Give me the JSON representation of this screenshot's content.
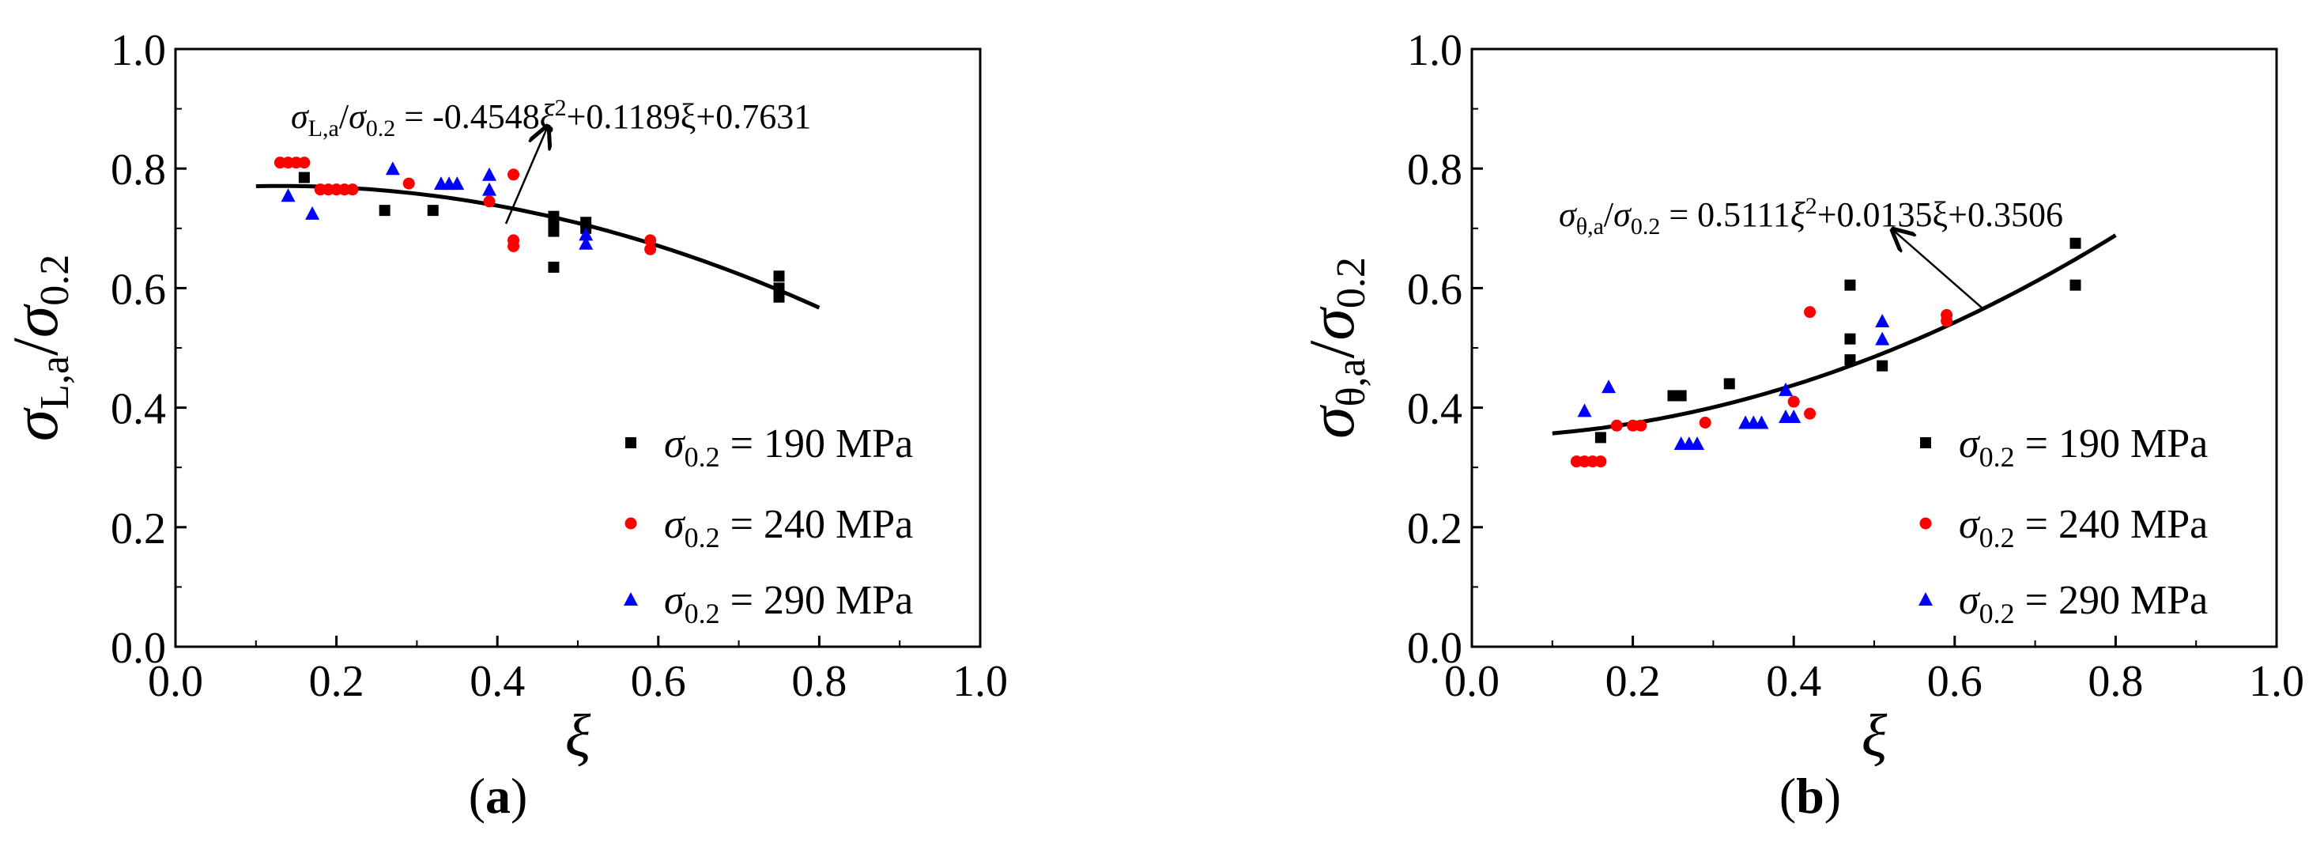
{
  "chart_data": [
    {
      "type": "scatter",
      "panel_label": "a",
      "x_label": "ξ",
      "y_label_sigma": "σ",
      "y_label_sub": "L,a",
      "y_label_den_sigma": "σ",
      "y_label_den_sub": "0.2",
      "xlim": [
        0.0,
        1.0
      ],
      "ylim": [
        0.0,
        1.0
      ],
      "x_ticks": [
        "0.0",
        "0.2",
        "0.4",
        "0.6",
        "0.8",
        "1.0"
      ],
      "y_ticks": [
        "0.0",
        "0.2",
        "0.4",
        "0.6",
        "0.8",
        "1.0"
      ],
      "legend_position": "bottom-right",
      "fit": {
        "coefficients": [
          -0.4548,
          0.1189,
          0.7631
        ],
        "x_range": [
          0.1,
          0.8
        ],
        "label_sigma": "σ",
        "label_sub": "L,a",
        "label_mid": "/",
        "label_den_sub": "0.2",
        "label_eq": " = -0.4548",
        "label_xi2": "ξ",
        "label_sup": "2",
        "label_rest": "+0.1189ξ+0.7631"
      },
      "series": [
        {
          "name": "σ0.2 = 190 MPa",
          "legend_sigma": "σ",
          "legend_sub": "0.2",
          "legend_rest": " = 190 MPa",
          "color": "#000000",
          "marker": "square",
          "x": [
            0.16,
            0.26,
            0.32,
            0.47,
            0.47,
            0.47,
            0.47,
            0.51,
            0.51,
            0.75,
            0.75,
            0.75
          ],
          "y": [
            0.785,
            0.73,
            0.73,
            0.72,
            0.71,
            0.695,
            0.635,
            0.71,
            0.7,
            0.62,
            0.6,
            0.585
          ]
        },
        {
          "name": "σ0.2 = 240 MPa",
          "legend_sigma": "σ",
          "legend_sub": "0.2",
          "legend_rest": " = 240 MPa",
          "color": "#ff0000",
          "marker": "circle",
          "x": [
            0.13,
            0.14,
            0.15,
            0.16,
            0.18,
            0.19,
            0.2,
            0.21,
            0.22,
            0.29,
            0.39,
            0.42,
            0.42,
            0.42,
            0.59,
            0.59
          ],
          "y": [
            0.81,
            0.81,
            0.81,
            0.81,
            0.765,
            0.765,
            0.765,
            0.765,
            0.765,
            0.775,
            0.745,
            0.79,
            0.68,
            0.67,
            0.68,
            0.665
          ]
        },
        {
          "name": "σ0.2 = 290 MPa",
          "legend_sigma": "σ",
          "legend_sub": "0.2",
          "legend_rest": " = 290 MPa",
          "color": "#0000ff",
          "marker": "triangle",
          "x": [
            0.14,
            0.17,
            0.27,
            0.33,
            0.34,
            0.35,
            0.39,
            0.39,
            0.51,
            0.51
          ],
          "y": [
            0.755,
            0.725,
            0.8,
            0.775,
            0.775,
            0.775,
            0.79,
            0.765,
            0.69,
            0.675
          ]
        }
      ]
    },
    {
      "type": "scatter",
      "panel_label": "b",
      "x_label": "ξ",
      "y_label_sigma": "σ",
      "y_label_sub": "θ,a",
      "y_label_den_sigma": "σ",
      "y_label_den_sub": "0.2",
      "xlim": [
        0.0,
        1.0
      ],
      "ylim": [
        0.0,
        1.0
      ],
      "x_ticks": [
        "0.0",
        "0.2",
        "0.4",
        "0.6",
        "0.8",
        "1.0"
      ],
      "y_ticks": [
        "0.0",
        "0.2",
        "0.4",
        "0.6",
        "0.8",
        "1.0"
      ],
      "legend_position": "bottom-right",
      "fit": {
        "coefficients": [
          0.5111,
          0.0135,
          0.3506
        ],
        "x_range": [
          0.1,
          0.8
        ],
        "label_sigma": "σ",
        "label_sub": "θ,a",
        "label_mid": "/",
        "label_den_sub": "0.2",
        "label_eq": " = 0.5111",
        "label_xi2": "ξ",
        "label_sup": "2",
        "label_rest": "+0.0135ξ+0.3506"
      },
      "series": [
        {
          "name": "σ0.2 = 190 MPa",
          "legend_sigma": "σ",
          "legend_sub": "0.2",
          "legend_rest": " = 190 MPa",
          "color": "#000000",
          "marker": "square",
          "x": [
            0.16,
            0.25,
            0.26,
            0.32,
            0.47,
            0.47,
            0.47,
            0.51,
            0.75,
            0.75
          ],
          "y": [
            0.35,
            0.42,
            0.42,
            0.44,
            0.605,
            0.515,
            0.48,
            0.47,
            0.675,
            0.605
          ]
        },
        {
          "name": "σ0.2 = 240 MPa",
          "legend_sigma": "σ",
          "legend_sub": "0.2",
          "legend_rest": " = 240 MPa",
          "color": "#ff0000",
          "marker": "circle",
          "x": [
            0.13,
            0.14,
            0.15,
            0.16,
            0.18,
            0.2,
            0.21,
            0.29,
            0.4,
            0.42,
            0.42,
            0.59,
            0.59
          ],
          "y": [
            0.31,
            0.31,
            0.31,
            0.31,
            0.37,
            0.37,
            0.37,
            0.375,
            0.41,
            0.56,
            0.39,
            0.555,
            0.545
          ]
        },
        {
          "name": "σ0.2 = 290 MPa",
          "legend_sigma": "σ",
          "legend_sub": "0.2",
          "legend_rest": " = 290 MPa",
          "color": "#0000ff",
          "marker": "triangle",
          "x": [
            0.14,
            0.17,
            0.26,
            0.27,
            0.28,
            0.34,
            0.35,
            0.36,
            0.39,
            0.39,
            0.4,
            0.51,
            0.51
          ],
          "y": [
            0.395,
            0.435,
            0.34,
            0.34,
            0.34,
            0.375,
            0.375,
            0.375,
            0.43,
            0.385,
            0.385,
            0.545,
            0.515
          ]
        }
      ]
    }
  ]
}
